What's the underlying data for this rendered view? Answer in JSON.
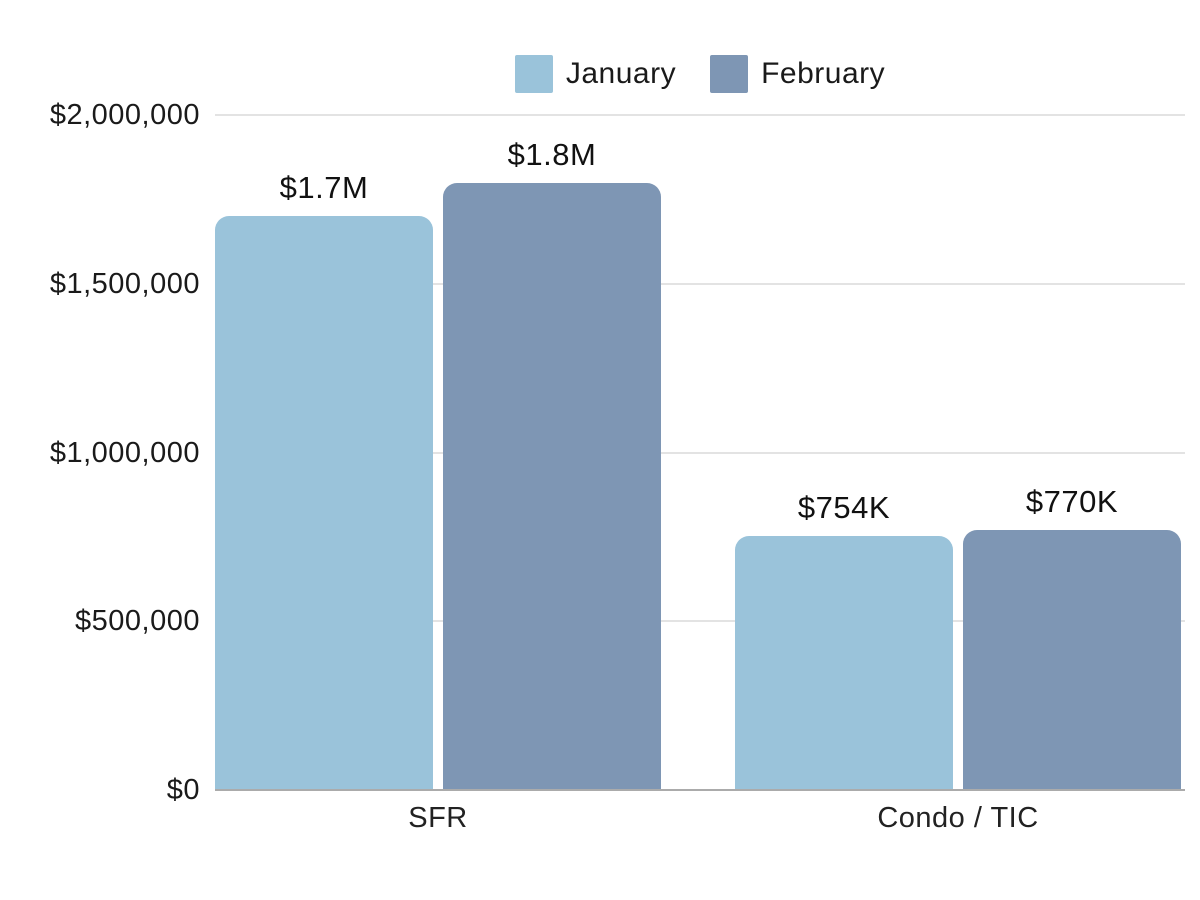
{
  "chart_data": {
    "type": "bar",
    "title": "",
    "categories": [
      "SFR",
      "Condo / TIC"
    ],
    "series": [
      {
        "name": "January",
        "color": "#9AC3DA",
        "values": [
          1700000,
          754000
        ],
        "data_labels": [
          "$1.7M",
          "$754K"
        ]
      },
      {
        "name": "February",
        "color": "#7E96B4",
        "values": [
          1800000,
          770000
        ],
        "data_labels": [
          "$1.8M",
          "$770K"
        ]
      }
    ],
    "ylim": [
      0,
      2000000
    ],
    "yticks": [
      {
        "value": 2000000,
        "label": "$2,000,000"
      },
      {
        "value": 1500000,
        "label": "$1,500,000"
      },
      {
        "value": 1000000,
        "label": "$1,000,000"
      },
      {
        "value": 500000,
        "label": "$500,000"
      },
      {
        "value": 0,
        "label": "$0"
      }
    ],
    "grid": true,
    "legend_position": "top",
    "colors": {
      "grid": "#E3E3E3",
      "baseline": "#ABABAB",
      "text": "#1A1A1A",
      "background": "#FFFFFF"
    }
  }
}
